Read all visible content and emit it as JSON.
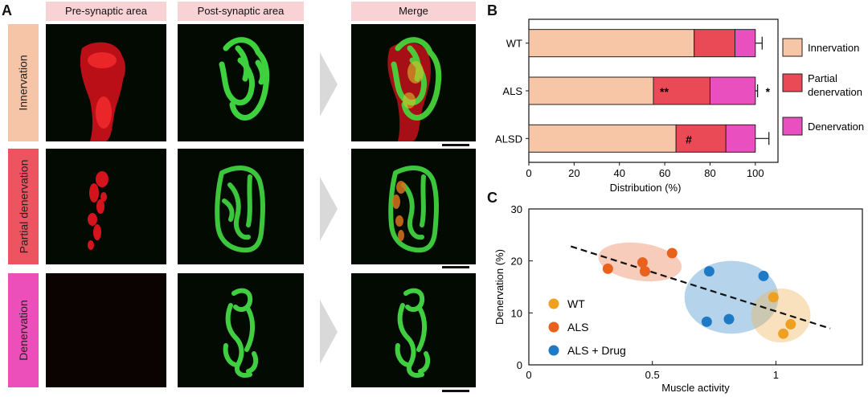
{
  "panel_a": {
    "letter": "A",
    "columns": [
      "Pre-synaptic area",
      "Post-synaptic area",
      "Merge"
    ],
    "rows": [
      {
        "label": "Innervation",
        "color": "#f6c4a6"
      },
      {
        "label": "Partial denervation",
        "color": "#ec5560"
      },
      {
        "label": "Denervation",
        "color": "#ec4fb9"
      }
    ]
  },
  "panel_b": {
    "letter": "B",
    "colors": {
      "Innervation": "#f7c6a6",
      "Partial denervation": "#ea4a55",
      "Denervation": "#ea4fc0"
    },
    "legend": [
      "Innervation",
      "Partial denervation",
      "Denervation"
    ]
  },
  "panel_c": {
    "letter": "C",
    "colors": {
      "WT": "#f0a020",
      "ALS": "#e8621e",
      "ALS + Drug": "#1f7ac6"
    },
    "legend": [
      "WT",
      "ALS",
      "ALS + Drug"
    ]
  },
  "chart_data": [
    {
      "type": "bar",
      "orientation": "horizontal",
      "stacked": true,
      "categories": [
        "WT",
        "ALS",
        "ALSD"
      ],
      "series": [
        {
          "name": "Innervation",
          "values": [
            73,
            55,
            65
          ],
          "errors": [
            8,
            4,
            8
          ]
        },
        {
          "name": "Partial denervation",
          "values": [
            18,
            25,
            22
          ],
          "errors": [
            4,
            4,
            4
          ]
        },
        {
          "name": "Denervation",
          "values": [
            9,
            20,
            13
          ],
          "errors": [
            3,
            1,
            6
          ]
        }
      ],
      "annotations": [
        {
          "category": "ALS",
          "series": "Innervation",
          "text": "**"
        },
        {
          "category": "ALS",
          "series": "Denervation",
          "text": "*"
        },
        {
          "category": "ALSD",
          "series": "Innervation",
          "text": "#"
        }
      ],
      "xlabel": "Distribution (%)",
      "xlim": [
        0,
        110
      ],
      "xticks": [
        0,
        20,
        40,
        60,
        80,
        100
      ]
    },
    {
      "type": "scatter",
      "series": [
        {
          "name": "WT",
          "x": [
            0.99,
            1.06,
            1.03
          ],
          "y": [
            13,
            7.8,
            6
          ]
        },
        {
          "name": "ALS",
          "x": [
            0.32,
            0.46,
            0.47,
            0.58
          ],
          "y": [
            18.5,
            19.7,
            18,
            21.5
          ]
        },
        {
          "name": "ALS + Drug",
          "x": [
            0.73,
            0.95,
            0.72,
            0.81
          ],
          "y": [
            18,
            17.1,
            8.3,
            8.8
          ]
        }
      ],
      "trendline": {
        "x": [
          0.17,
          1.22
        ],
        "y": [
          22.8,
          7.0
        ],
        "style": "dashed"
      },
      "xlabel": "Muscle activity",
      "ylabel": "Denervation (%)",
      "xlim": [
        0,
        1.35
      ],
      "ylim": [
        0,
        30
      ],
      "xticks": [
        "0",
        "0.5",
        "1"
      ],
      "yticks": [
        "0",
        "10",
        "20",
        "30"
      ]
    }
  ]
}
